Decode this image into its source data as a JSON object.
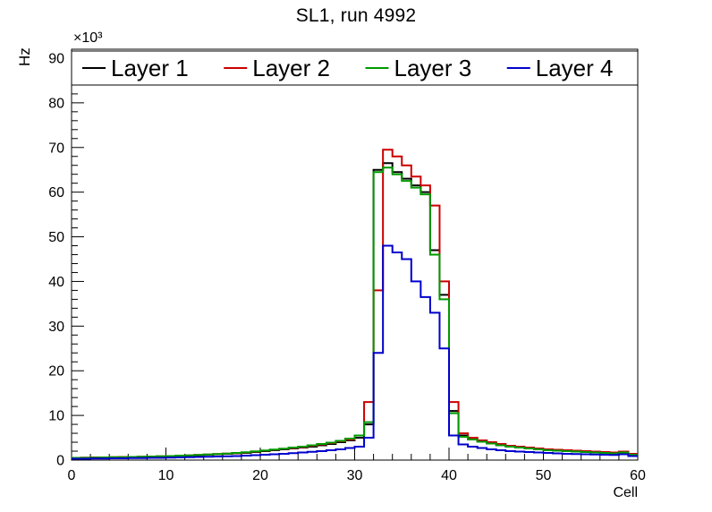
{
  "title": "SL1, run 4992",
  "chart_data": {
    "type": "line",
    "subtype": "step-histogram",
    "title": "SL1, run 4992",
    "xlabel": "Cell",
    "ylabel": "Hz",
    "y_scale_label": "×10³",
    "y_unit_multiplier": 1000,
    "xlim": [
      0,
      60
    ],
    "ylim": [
      0,
      92
    ],
    "xticks": [
      0,
      10,
      20,
      30,
      40,
      50,
      60
    ],
    "yticks": [
      0,
      10,
      20,
      30,
      40,
      50,
      60,
      70,
      80,
      90
    ],
    "minor_tick_step": 2,
    "bin_width": 1,
    "grid": false,
    "legend_position": "top",
    "frame_color": "#000000",
    "series": [
      {
        "name": "Layer 1",
        "color": "#000000",
        "values": [
          0.5,
          0.5,
          0.55,
          0.6,
          0.6,
          0.65,
          0.7,
          0.7,
          0.75,
          0.8,
          0.85,
          0.9,
          1.0,
          1.1,
          1.2,
          1.3,
          1.4,
          1.5,
          1.6,
          1.8,
          2.0,
          2.2,
          2.4,
          2.6,
          2.8,
          3.0,
          3.3,
          3.6,
          4.0,
          4.4,
          5.0,
          8.0,
          65.0,
          66.5,
          64.5,
          63.0,
          61.5,
          60.0,
          47.0,
          37.0,
          11.0,
          5.5,
          4.8,
          4.2,
          3.8,
          3.4,
          3.1,
          2.9,
          2.7,
          2.5,
          2.3,
          2.2,
          2.1,
          2.0,
          1.9,
          1.8,
          1.7,
          1.6,
          1.8,
          1.3
        ]
      },
      {
        "name": "Layer 2",
        "color": "#cc0000",
        "values": [
          0.5,
          0.55,
          0.6,
          0.6,
          0.65,
          0.7,
          0.7,
          0.75,
          0.8,
          0.85,
          0.9,
          0.95,
          1.05,
          1.15,
          1.25,
          1.35,
          1.45,
          1.55,
          1.7,
          1.9,
          2.1,
          2.3,
          2.5,
          2.7,
          2.9,
          3.2,
          3.5,
          3.8,
          4.2,
          4.6,
          5.5,
          13.0,
          38.0,
          69.5,
          68.0,
          66.0,
          63.5,
          61.5,
          57.0,
          40.0,
          13.0,
          6.0,
          5.0,
          4.4,
          4.0,
          3.6,
          3.2,
          3.0,
          2.8,
          2.6,
          2.4,
          2.3,
          2.2,
          2.1,
          2.0,
          1.9,
          1.8,
          1.7,
          1.9,
          1.4
        ]
      },
      {
        "name": "Layer 3",
        "color": "#009900",
        "values": [
          0.5,
          0.5,
          0.55,
          0.6,
          0.65,
          0.65,
          0.7,
          0.75,
          0.8,
          0.85,
          0.9,
          1.0,
          1.05,
          1.15,
          1.25,
          1.35,
          1.45,
          1.6,
          1.75,
          1.95,
          2.15,
          2.35,
          2.55,
          2.8,
          3.0,
          3.3,
          3.6,
          3.9,
          4.3,
          4.8,
          5.5,
          8.5,
          64.5,
          65.5,
          64.0,
          62.5,
          61.0,
          59.5,
          46.0,
          36.0,
          10.5,
          5.2,
          4.6,
          4.1,
          3.7,
          3.3,
          3.0,
          2.8,
          2.6,
          2.4,
          2.2,
          2.1,
          2.0,
          1.9,
          1.8,
          1.7,
          1.6,
          1.5,
          1.7,
          1.2
        ]
      },
      {
        "name": "Layer 4",
        "color": "#0000cc",
        "values": [
          0.3,
          0.3,
          0.35,
          0.35,
          0.4,
          0.4,
          0.45,
          0.45,
          0.5,
          0.5,
          0.55,
          0.6,
          0.65,
          0.7,
          0.75,
          0.8,
          0.85,
          0.9,
          1.0,
          1.1,
          1.2,
          1.3,
          1.4,
          1.55,
          1.7,
          1.85,
          2.0,
          2.2,
          2.4,
          2.7,
          3.0,
          5.0,
          24.0,
          48.0,
          46.5,
          45.0,
          40.0,
          36.5,
          33.0,
          25.0,
          5.5,
          3.5,
          3.0,
          2.7,
          2.4,
          2.2,
          2.0,
          1.9,
          1.8,
          1.7,
          1.6,
          1.5,
          1.4,
          1.35,
          1.3,
          1.25,
          1.2,
          1.15,
          1.3,
          0.9
        ]
      }
    ]
  }
}
